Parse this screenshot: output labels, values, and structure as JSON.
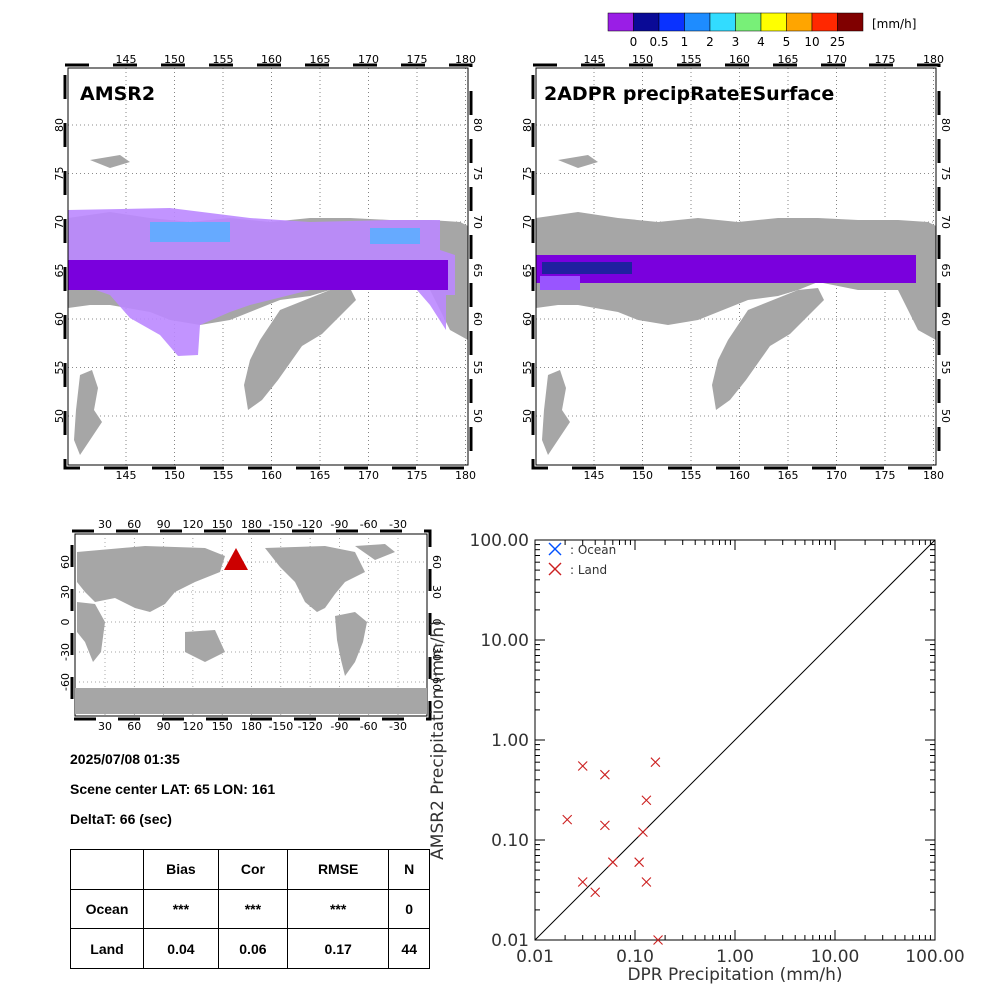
{
  "colorbar": {
    "unit": "[mm/h]",
    "colors": [
      "#9a1ee6",
      "#0a0a96",
      "#0a32ff",
      "#1e8cff",
      "#32dcff",
      "#78f078",
      "#ffff00",
      "#ffa500",
      "#ff2800",
      "#800000"
    ],
    "labels": [
      "0",
      "0.5",
      "1",
      "2",
      "3",
      "4",
      "5",
      "10",
      "25"
    ]
  },
  "map_axis_labels": {
    "lon": [
      "145",
      "150",
      "155",
      "160",
      "165",
      "170",
      "175",
      "180"
    ],
    "lat": [
      "50",
      "55",
      "60",
      "65",
      "70",
      "75",
      "80"
    ]
  },
  "panel_left": {
    "title": "AMSR2"
  },
  "panel_right": {
    "title": "2ADPR precipRateESurface"
  },
  "world_map": {
    "lon_labels": [
      "30",
      "60",
      "90",
      "120",
      "150",
      "180",
      "-150",
      "-120",
      "-90",
      "-60",
      "-30"
    ],
    "lat_labels": [
      "60",
      "30",
      "0",
      "-30",
      "-60"
    ],
    "marker_color": "#cc0000"
  },
  "info": {
    "datetime": "2025/07/08 01:35",
    "scene_center": "Scene center LAT: 65   LON: 161",
    "deltat": "DeltaT:   66 (sec)"
  },
  "stats_table": {
    "headers": [
      "Bias",
      "Cor",
      "RMSE",
      "N"
    ],
    "rows": [
      {
        "label": "Ocean",
        "values": [
          "***",
          "***",
          "***",
          "0"
        ]
      },
      {
        "label": "Land",
        "values": [
          "0.04",
          "0.06",
          "0.17",
          "44"
        ]
      }
    ]
  },
  "chart_data": {
    "type": "scatter",
    "scale": "log-log",
    "xlabel": "DPR Precipitation (mm/h)",
    "ylabel": "AMSR2 Precipitation (mm/h)",
    "xlim": [
      0.01,
      100
    ],
    "ylim": [
      0.01,
      100
    ],
    "x_ticks": [
      "0.01",
      "0.10",
      "1.00",
      "10.00",
      "100.00"
    ],
    "y_ticks": [
      "0.01",
      "0.10",
      "1.00",
      "10.00",
      "100.00"
    ],
    "legend_position": "top-left",
    "one_to_one_line": true,
    "series": [
      {
        "name": ": Ocean",
        "color": "#0050ff",
        "points": []
      },
      {
        "name": ": Land",
        "color": "#cc2020",
        "points": [
          [
            0.03,
            0.55
          ],
          [
            0.05,
            0.45
          ],
          [
            0.16,
            0.6
          ],
          [
            0.021,
            0.16
          ],
          [
            0.05,
            0.14
          ],
          [
            0.13,
            0.25
          ],
          [
            0.12,
            0.12
          ],
          [
            0.06,
            0.06
          ],
          [
            0.11,
            0.06
          ],
          [
            0.03,
            0.038
          ],
          [
            0.04,
            0.03
          ],
          [
            0.13,
            0.038
          ],
          [
            0.17,
            0.01
          ]
        ]
      }
    ]
  }
}
